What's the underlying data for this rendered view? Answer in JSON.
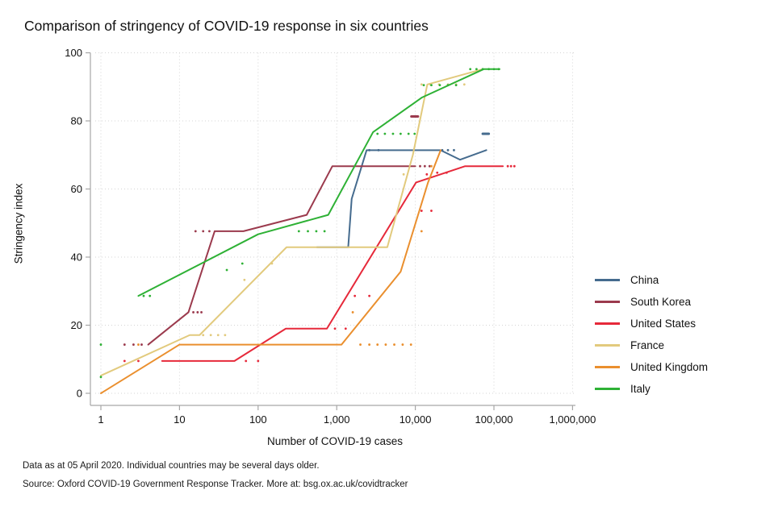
{
  "notes": {
    "line1": "Data as at 05 April 2020. Individual countries may be several days older.",
    "line2": "Source: Oxford COVID-19 Government Response Tracker. More at: bsg.ox.ac.uk/covidtracker"
  },
  "chart_data": {
    "type": "line",
    "title": "Comparison of stringency of COVID-19 response in six countries",
    "xlabel": "Number of COVID-19 cases",
    "ylabel": "Stringency index",
    "x_scale": "log10",
    "xlim": [
      1,
      1000000
    ],
    "ylim": [
      0,
      100
    ],
    "grid": "dotted",
    "legend_position": "right",
    "axis_color": "#a6a6a6",
    "grid_color": "#d4d4d4",
    "x_ticks": [
      {
        "value": 1,
        "label": "1"
      },
      {
        "value": 10,
        "label": "10"
      },
      {
        "value": 100,
        "label": "100"
      },
      {
        "value": 1000,
        "label": "1,000"
      },
      {
        "value": 10000,
        "label": "10,000"
      },
      {
        "value": 100000,
        "label": "100,000"
      },
      {
        "value": 1000000,
        "label": "1,000,000"
      }
    ],
    "y_ticks": [
      0,
      20,
      40,
      60,
      80,
      100
    ],
    "series": [
      {
        "name": "China",
        "color": "#456b8e",
        "line": [
          [
            560,
            42.9
          ],
          [
            1400,
            42.9
          ],
          [
            1550,
            57.1
          ],
          [
            2400,
            71.4
          ],
          [
            21000,
            71.4
          ],
          [
            37000,
            68.6
          ],
          [
            80000,
            71.4
          ]
        ],
        "dash": [
          [
            72000,
            76.2
          ],
          [
            86000,
            76.2
          ]
        ],
        "dots": [
          [
            2600,
            71.4
          ],
          [
            3400,
            71.4
          ],
          [
            22000,
            71.4
          ],
          [
            26000,
            71.4
          ],
          [
            31000,
            71.4
          ]
        ]
      },
      {
        "name": "South Korea",
        "color": "#9b3a4d",
        "line": [
          [
            4,
            14.3
          ],
          [
            13,
            23.8
          ],
          [
            28,
            47.6
          ],
          [
            65,
            47.6
          ],
          [
            415,
            52.4
          ],
          [
            880,
            66.7
          ],
          [
            10000,
            66.7
          ]
        ],
        "dash": [
          [
            8900,
            81.3
          ],
          [
            10800,
            81.3
          ]
        ],
        "dots": [
          [
            2,
            14.3
          ],
          [
            2.6,
            14.3
          ],
          [
            3.3,
            14.3
          ],
          [
            15,
            23.8
          ],
          [
            17,
            23.8
          ],
          [
            19,
            23.8
          ],
          [
            16,
            47.6
          ],
          [
            20,
            47.6
          ],
          [
            24,
            47.6
          ],
          [
            11500,
            66.7
          ],
          [
            13200,
            66.7
          ],
          [
            15200,
            66.7
          ]
        ]
      },
      {
        "name": "United States",
        "color": "#e6293a",
        "line": [
          [
            6,
            9.5
          ],
          [
            50,
            9.5
          ],
          [
            225,
            19
          ],
          [
            750,
            19
          ],
          [
            10200,
            61.9
          ],
          [
            43000,
            66.7
          ],
          [
            130000,
            66.7
          ]
        ],
        "dash": null,
        "dots": [
          [
            2,
            9.5
          ],
          [
            3,
            9.5
          ],
          [
            70,
            9.5
          ],
          [
            100,
            9.5
          ],
          [
            950,
            19
          ],
          [
            1300,
            19
          ],
          [
            1700,
            28.6
          ],
          [
            2600,
            28.6
          ],
          [
            12000,
            53.6
          ],
          [
            16000,
            53.6
          ],
          [
            14000,
            64.3
          ],
          [
            19000,
            64.8
          ],
          [
            25000,
            64.8
          ],
          [
            150000,
            66.7
          ],
          [
            165000,
            66.7
          ],
          [
            182000,
            66.7
          ]
        ]
      },
      {
        "name": "France",
        "color": "#e2ca7d",
        "line": [
          [
            1,
            5.2
          ],
          [
            13.5,
            17.1
          ],
          [
            18,
            17.1
          ],
          [
            230,
            42.9
          ],
          [
            4400,
            42.9
          ],
          [
            9300,
            70
          ],
          [
            14200,
            90.7
          ],
          [
            72000,
            95.2
          ]
        ],
        "dash": null,
        "dots": [
          [
            20,
            17.1
          ],
          [
            25,
            17.1
          ],
          [
            31,
            17.1
          ],
          [
            38,
            17.1
          ],
          [
            67,
            33.3
          ],
          [
            150,
            38.1
          ],
          [
            7100,
            64.3
          ],
          [
            12000,
            90.7
          ],
          [
            15500,
            90.7
          ],
          [
            20000,
            90.7
          ],
          [
            26000,
            90.7
          ],
          [
            33000,
            90.7
          ],
          [
            42000,
            90.7
          ]
        ]
      },
      {
        "name": "United Kingdom",
        "color": "#ea8f2e",
        "line": [
          [
            1,
            0
          ],
          [
            10,
            14.3
          ],
          [
            1150,
            14.3
          ],
          [
            6500,
            35.7
          ],
          [
            14500,
            61.9
          ],
          [
            21000,
            71.4
          ]
        ],
        "dash": null,
        "dots": [
          [
            3,
            14.3
          ],
          [
            1600,
            23.8
          ],
          [
            2000,
            14.3
          ],
          [
            2600,
            14.3
          ],
          [
            3300,
            14.3
          ],
          [
            4200,
            14.3
          ],
          [
            5400,
            14.3
          ],
          [
            6900,
            14.3
          ],
          [
            8800,
            14.3
          ],
          [
            12000,
            47.6
          ],
          [
            16000,
            66.7
          ]
        ]
      },
      {
        "name": "Italy",
        "color": "#2eb135",
        "line": [
          [
            3,
            28.6
          ],
          [
            100,
            46.7
          ],
          [
            780,
            52.4
          ],
          [
            2900,
            76.7
          ],
          [
            12200,
            86.9
          ],
          [
            74000,
            95.2
          ],
          [
            118000,
            95.2
          ]
        ],
        "dash": null,
        "dots": [
          [
            1,
            4.8
          ],
          [
            1,
            14.3
          ],
          [
            3.5,
            28.6
          ],
          [
            4.2,
            28.6
          ],
          [
            40,
            36.2
          ],
          [
            63,
            38.1
          ],
          [
            330,
            47.6
          ],
          [
            430,
            47.6
          ],
          [
            550,
            47.6
          ],
          [
            700,
            47.6
          ],
          [
            3300,
            76.2
          ],
          [
            4100,
            76.2
          ],
          [
            5200,
            76.2
          ],
          [
            6500,
            76.2
          ],
          [
            8200,
            76.2
          ],
          [
            9800,
            76.2
          ],
          [
            12800,
            90.5
          ],
          [
            16000,
            90.5
          ],
          [
            20500,
            90.5
          ],
          [
            26000,
            90.5
          ],
          [
            33000,
            90.5
          ],
          [
            50000,
            95.2
          ],
          [
            60000,
            95.2
          ],
          [
            72000,
            95.2
          ],
          [
            86000,
            95.2
          ],
          [
            100000,
            95.2
          ],
          [
            115000,
            95.2
          ]
        ]
      }
    ]
  }
}
